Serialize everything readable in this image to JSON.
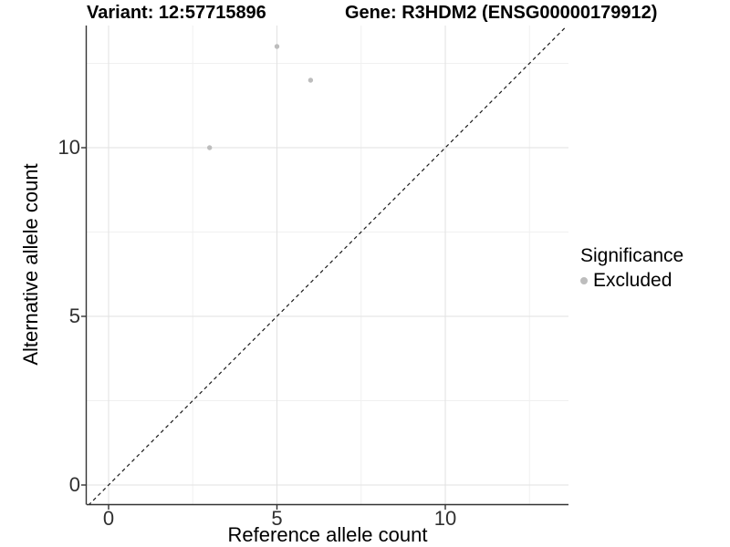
{
  "titles": {
    "variant": "Variant: 12:57715896",
    "gene": "Gene: R3HDM2 (ENSG00000179912)"
  },
  "axes": {
    "x": {
      "label": "Reference allele count",
      "tick_labels": [
        "0",
        "5",
        "10"
      ]
    },
    "y": {
      "label": "Alternative allele count",
      "tick_labels": [
        "0",
        "5",
        "10"
      ]
    }
  },
  "legend": {
    "title": "Significance",
    "items": [
      {
        "label": "Excluded",
        "color": "#bdbdbd"
      }
    ]
  },
  "colors": {
    "background": "#ffffff",
    "axis_line": "#333333",
    "tick_text": "#303030",
    "grid_major": "#e2e2e2",
    "grid_minor": "#f0f0f0",
    "dashed_line": "#1a1a1a",
    "point": "#bdbdbd"
  },
  "chart_data": {
    "type": "scatter",
    "title_left": "Variant: 12:57715896",
    "title_right": "Gene: R3HDM2 (ENSG00000179912)",
    "xlabel": "Reference allele count",
    "ylabel": "Alternative allele count",
    "xlim": [
      -0.65,
      13.65
    ],
    "ylim": [
      -0.6,
      13.6
    ],
    "x_ticks": [
      0,
      5,
      10
    ],
    "y_ticks": [
      0,
      5,
      10
    ],
    "x_minor_ticks": [
      2.5,
      7.5,
      12.5
    ],
    "y_minor_ticks": [
      2.5,
      7.5,
      12.5
    ],
    "grid": true,
    "legend_position": "right",
    "reference_line": {
      "type": "identity",
      "style": "dashed",
      "color": "#1a1a1a"
    },
    "series": [
      {
        "name": "Excluded",
        "color": "#bdbdbd",
        "points": [
          {
            "x": 3,
            "y": 10
          },
          {
            "x": 5,
            "y": 13
          },
          {
            "x": 6,
            "y": 12
          }
        ]
      }
    ]
  }
}
